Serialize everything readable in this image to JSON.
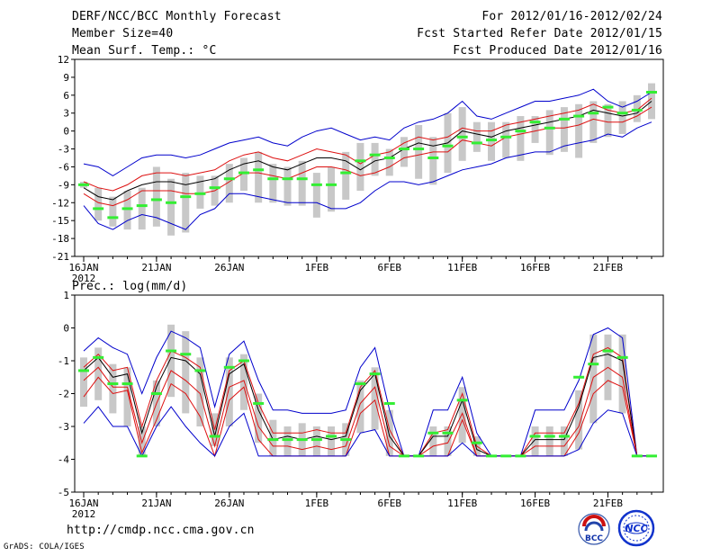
{
  "header": {
    "title": "DERF/NCC/BCC Monthly Forecast",
    "member_size": "Member Size=40",
    "variable": "Mean Surf. Temp.: °C",
    "period": "For 2012/01/16-2012/02/24",
    "started": "Fcst Started Refer Date 2012/01/15",
    "produced": "Fcst Produced Date 2012/01/16"
  },
  "footer": {
    "url": "http://cmdp.ncc.cma.gov.cn",
    "credit": "GrADS: COLA/IGES",
    "logo_left_text": "BCC",
    "logo_right_text": "NCC"
  },
  "colors": {
    "envelope": "#0000cc",
    "band": "#dd1111",
    "mean": "#000000",
    "box": "#c8c8c8",
    "median": "#33ee33"
  },
  "chart_data": [
    {
      "type": "line",
      "name": "temperature",
      "title": "",
      "ylabel": "Mean Surf. Temp.: °C",
      "ylim": [
        -21,
        12
      ],
      "yticks": [
        -21,
        -18,
        -15,
        -12,
        -9,
        -6,
        -3,
        0,
        3,
        6,
        9,
        12
      ],
      "x_first_day": 0,
      "x_last_day": 39,
      "xticks": [
        {
          "day": 0,
          "label": "16JAN"
        },
        {
          "day": 5,
          "label": "21JAN"
        },
        {
          "day": 10,
          "label": "26JAN"
        },
        {
          "day": 16,
          "label": "1FEB"
        },
        {
          "day": 21,
          "label": "6FEB"
        },
        {
          "day": 26,
          "label": "11FEB"
        },
        {
          "day": 31,
          "label": "16FEB"
        },
        {
          "day": 36,
          "label": "21FEB"
        }
      ],
      "year_label": "2012",
      "series": [
        {
          "name": "max",
          "values": [
            -5.5,
            -6,
            -7.5,
            -6,
            -4.5,
            -4,
            -4,
            -4.5,
            -4,
            -3,
            -2,
            -1.5,
            -1,
            -2,
            -2.5,
            -1,
            0,
            0.5,
            -0.5,
            -1.5,
            -1,
            -1.5,
            0.5,
            1.5,
            2,
            3,
            5,
            2.5,
            2,
            3,
            4,
            5,
            5,
            5.5,
            6,
            7,
            5,
            4,
            5,
            6.5
          ]
        },
        {
          "name": "upper",
          "values": [
            -8.5,
            -9.5,
            -10,
            -9,
            -7.5,
            -7,
            -7,
            -7.5,
            -7,
            -6.5,
            -5,
            -4,
            -3.5,
            -4.5,
            -5,
            -4,
            -3,
            -3.5,
            -4,
            -5.5,
            -4,
            -3.5,
            -2,
            -1,
            -1.5,
            -1,
            0.5,
            0,
            0,
            1,
            1.5,
            2,
            2.5,
            3,
            3.5,
            4.5,
            3.5,
            3,
            3.5,
            5.5
          ]
        },
        {
          "name": "mean",
          "values": [
            -9.5,
            -11,
            -11.5,
            -10,
            -9,
            -8.5,
            -8.5,
            -9,
            -8.5,
            -8,
            -6.5,
            -5.5,
            -5,
            -6,
            -6.5,
            -5.5,
            -4.5,
            -4.5,
            -5,
            -6.5,
            -5,
            -4.5,
            -3,
            -2,
            -2.5,
            -2,
            0,
            -0.5,
            -1,
            0,
            0.5,
            1,
            1.5,
            2,
            2.5,
            3.5,
            3,
            2.5,
            3,
            5
          ]
        },
        {
          "name": "lower",
          "values": [
            -10.5,
            -12,
            -12.5,
            -11.5,
            -10,
            -10,
            -10,
            -10.5,
            -10.5,
            -10,
            -8.5,
            -7,
            -7,
            -7.5,
            -8,
            -7,
            -6,
            -6,
            -6.5,
            -7.5,
            -7,
            -6,
            -4.5,
            -4,
            -3.5,
            -3.5,
            -1.5,
            -2,
            -2.5,
            -1,
            -0.5,
            0,
            0.5,
            0.5,
            1,
            2,
            1.5,
            1.5,
            2.5,
            4
          ]
        },
        {
          "name": "min",
          "values": [
            -12.5,
            -15.5,
            -16.5,
            -15,
            -14,
            -14.5,
            -15.5,
            -16.5,
            -14,
            -13,
            -10.5,
            -10.5,
            -11,
            -11.5,
            -12,
            -12,
            -12,
            -13,
            -13,
            -12,
            -10,
            -8.5,
            -8.5,
            -9,
            -8.5,
            -7.5,
            -6.5,
            -6,
            -5.5,
            -4.5,
            -4,
            -3.5,
            -3.5,
            -2.5,
            -2,
            -1.5,
            -0.5,
            -1,
            0.5,
            1.5
          ]
        }
      ],
      "boxes": [
        {
          "low": -9.5,
          "high": -8.5,
          "median": -9
        },
        {
          "low": -15,
          "high": -9.5,
          "median": -13
        },
        {
          "low": -16,
          "high": -11,
          "median": -14.5
        },
        {
          "low": -16.5,
          "high": -10,
          "median": -13
        },
        {
          "low": -16.5,
          "high": -9.5,
          "median": -12.5
        },
        {
          "low": -16,
          "high": -6,
          "median": -11.5
        },
        {
          "low": -17.5,
          "high": -8,
          "median": -12
        },
        {
          "low": -17,
          "high": -7,
          "median": -11
        },
        {
          "low": -13,
          "high": -7.5,
          "median": -10.5
        },
        {
          "low": -12.5,
          "high": -7.5,
          "median": -9.5
        },
        {
          "low": -12,
          "high": -5.5,
          "median": -8
        },
        {
          "low": -10,
          "high": -4.5,
          "median": -7
        },
        {
          "low": -12,
          "high": -3.5,
          "median": -6.5
        },
        {
          "low": -12,
          "high": -5.5,
          "median": -8
        },
        {
          "low": -12.5,
          "high": -6,
          "median": -8
        },
        {
          "low": -12.5,
          "high": -5,
          "median": -8
        },
        {
          "low": -14.5,
          "high": -7,
          "median": -9
        },
        {
          "low": -13.5,
          "high": -6,
          "median": -9
        },
        {
          "low": -11.5,
          "high": -3.5,
          "median": -7
        },
        {
          "low": -10,
          "high": -2,
          "median": -5
        },
        {
          "low": -7.5,
          "high": -2,
          "median": -4
        },
        {
          "low": -7.5,
          "high": -3,
          "median": -4.5
        },
        {
          "low": -6,
          "high": -1,
          "median": -3
        },
        {
          "low": -8,
          "high": 1,
          "median": -3
        },
        {
          "low": -9,
          "high": -1,
          "median": -4.5
        },
        {
          "low": -7,
          "high": 3,
          "median": -2.5
        },
        {
          "low": -5,
          "high": 4,
          "median": -1
        },
        {
          "low": -3.5,
          "high": 1.5,
          "median": -2
        },
        {
          "low": -5,
          "high": 1.5,
          "median": -1.5
        },
        {
          "low": -4.5,
          "high": 1.5,
          "median": -1
        },
        {
          "low": -5,
          "high": 2.5,
          "median": 0
        },
        {
          "low": -2,
          "high": 2.5,
          "median": 1.5
        },
        {
          "low": -4,
          "high": 3.5,
          "median": 0.5
        },
        {
          "low": -3.5,
          "high": 4,
          "median": 2
        },
        {
          "low": -4.5,
          "high": 4.5,
          "median": 2.5
        },
        {
          "low": -2,
          "high": 5,
          "median": 3
        },
        {
          "low": -1,
          "high": 4.5,
          "median": 4
        },
        {
          "low": -0.5,
          "high": 5,
          "median": 3
        },
        {
          "low": 1.5,
          "high": 6,
          "median": 3.5
        },
        {
          "low": 2,
          "high": 8,
          "median": 6.5
        }
      ]
    },
    {
      "type": "line",
      "name": "precipitation",
      "title": "",
      "ylabel": "Prec.: log(mm/d)",
      "ylim": [
        -5,
        1
      ],
      "yticks": [
        -5,
        -4,
        -3,
        -2,
        -1,
        0,
        1
      ],
      "x_first_day": 0,
      "x_last_day": 39,
      "xticks": [
        {
          "day": 0,
          "label": "16JAN"
        },
        {
          "day": 5,
          "label": "21JAN"
        },
        {
          "day": 10,
          "label": "26JAN"
        },
        {
          "day": 16,
          "label": "1FEB"
        },
        {
          "day": 21,
          "label": "6FEB"
        },
        {
          "day": 26,
          "label": "11FEB"
        },
        {
          "day": 31,
          "label": "16FEB"
        },
        {
          "day": 36,
          "label": "21FEB"
        }
      ],
      "year_label": "2012",
      "series": [
        {
          "name": "max",
          "values": [
            -0.7,
            -0.3,
            -0.6,
            -0.8,
            -2,
            -0.9,
            -0.1,
            -0.3,
            -0.6,
            -2.4,
            -0.8,
            -0.4,
            -1.6,
            -2.5,
            -2.5,
            -2.6,
            -2.6,
            -2.6,
            -2.5,
            -1.2,
            -0.6,
            -2.5,
            -3.9,
            -3.9,
            -2.5,
            -2.5,
            -1.5,
            -3.2,
            -3.9,
            -3.9,
            -3.9,
            -2.5,
            -2.5,
            -2.5,
            -1.6,
            -0.2,
            0,
            -0.3,
            -3.9,
            -3.9
          ]
        },
        {
          "name": "upper",
          "values": [
            -1.2,
            -0.8,
            -1.3,
            -1.2,
            -3,
            -1.6,
            -0.7,
            -0.9,
            -1.2,
            -3.1,
            -1.3,
            -1,
            -2.3,
            -3.2,
            -3.2,
            -3.2,
            -3.1,
            -3.2,
            -3.2,
            -1.8,
            -1.3,
            -3.1,
            -3.9,
            -3.9,
            -3.2,
            -3.1,
            -2,
            -3.6,
            -3.9,
            -3.9,
            -3.9,
            -3.2,
            -3.2,
            -3.2,
            -2.3,
            -0.8,
            -0.6,
            -0.9,
            -3.9,
            -3.9
          ]
        },
        {
          "name": "mean",
          "values": [
            -1.3,
            -0.9,
            -1.5,
            -1.4,
            -3.2,
            -1.8,
            -0.9,
            -1,
            -1.4,
            -3.3,
            -1.4,
            -1.1,
            -2.5,
            -3.4,
            -3.3,
            -3.4,
            -3.3,
            -3.4,
            -3.3,
            -1.9,
            -1.4,
            -3.3,
            -3.9,
            -3.9,
            -3.3,
            -3.3,
            -2.2,
            -3.7,
            -3.9,
            -3.9,
            -3.9,
            -3.4,
            -3.4,
            -3.4,
            -2.4,
            -0.9,
            -0.8,
            -1,
            -3.9,
            -3.9
          ]
        },
        {
          "name": "lower",
          "values": [
            -1.6,
            -1.2,
            -1.8,
            -1.8,
            -3.5,
            -2.3,
            -1.3,
            -1.6,
            -2,
            -3.6,
            -1.8,
            -1.6,
            -3,
            -3.6,
            -3.6,
            -3.7,
            -3.6,
            -3.7,
            -3.6,
            -2.3,
            -1.8,
            -3.6,
            -3.9,
            -3.9,
            -3.6,
            -3.5,
            -2.6,
            -3.9,
            -3.9,
            -3.9,
            -3.9,
            -3.6,
            -3.6,
            -3.6,
            -3,
            -1.5,
            -1.2,
            -1.5,
            -3.9,
            -3.9
          ]
        },
        {
          "name": "lower2",
          "values": [
            -2.1,
            -1.5,
            -2,
            -1.9,
            -3.8,
            -2.8,
            -1.7,
            -2,
            -2.7,
            -3.9,
            -2.2,
            -1.8,
            -3.4,
            -3.9,
            -3.9,
            -3.9,
            -3.9,
            -3.9,
            -3.9,
            -2.6,
            -2.2,
            -3.9,
            -3.9,
            -3.9,
            -3.9,
            -3.9,
            -2.8,
            -3.9,
            -3.9,
            -3.9,
            -3.9,
            -3.9,
            -3.9,
            -3.9,
            -3.2,
            -2,
            -1.6,
            -1.8,
            -3.9,
            -3.9
          ]
        },
        {
          "name": "min",
          "values": [
            -2.9,
            -2.4,
            -3,
            -3,
            -3.9,
            -3,
            -2.4,
            -3,
            -3.5,
            -3.9,
            -3,
            -2.6,
            -3.9,
            -3.9,
            -3.9,
            -3.9,
            -3.9,
            -3.9,
            -3.9,
            -3.2,
            -3.1,
            -3.9,
            -3.9,
            -3.9,
            -3.9,
            -3.9,
            -3.5,
            -3.9,
            -3.9,
            -3.9,
            -3.9,
            -3.9,
            -3.9,
            -3.9,
            -3.7,
            -2.9,
            -2.5,
            -2.6,
            -3.9,
            -3.9
          ]
        }
      ],
      "boxes": [
        {
          "low": -2.4,
          "high": -0.9,
          "median": -1.3
        },
        {
          "low": -2.2,
          "high": -0.6,
          "median": -0.9
        },
        {
          "low": -2.6,
          "high": -1.1,
          "median": -1.7
        },
        {
          "low": -3,
          "high": -1.2,
          "median": -1.7
        },
        {
          "low": -3.9,
          "high": -3,
          "median": -3.9
        },
        {
          "low": -3,
          "high": -1.6,
          "median": -2
        },
        {
          "low": -2.1,
          "high": 0.1,
          "median": -0.7
        },
        {
          "low": -2.6,
          "high": -0.1,
          "median": -0.8
        },
        {
          "low": -3,
          "high": -0.9,
          "median": -1.3
        },
        {
          "low": -3.6,
          "high": -2.6,
          "median": -3.3
        },
        {
          "low": -3,
          "high": -0.9,
          "median": -1.2
        },
        {
          "low": -2.5,
          "high": -0.8,
          "median": -1
        },
        {
          "low": -3.5,
          "high": -2,
          "median": -2.3
        },
        {
          "low": -3.9,
          "high": -2.8,
          "median": -3.4
        },
        {
          "low": -3.9,
          "high": -3,
          "median": -3.4
        },
        {
          "low": -3.9,
          "high": -2.9,
          "median": -3.4
        },
        {
          "low": -3.9,
          "high": -3,
          "median": -3.4
        },
        {
          "low": -3.9,
          "high": -3,
          "median": -3.3
        },
        {
          "low": -3.9,
          "high": -2.9,
          "median": -3.4
        },
        {
          "low": -3.2,
          "high": -1.6,
          "median": -1.7
        },
        {
          "low": -3.1,
          "high": -1.2,
          "median": -1.4
        },
        {
          "low": -3.9,
          "high": -2.5,
          "median": -2.3
        },
        {
          "low": -3.9,
          "high": -3.9,
          "median": -3.9
        },
        {
          "low": -3.9,
          "high": -3.9,
          "median": -3.9
        },
        {
          "low": -3.9,
          "high": -3,
          "median": -3.2
        },
        {
          "low": -3.9,
          "high": -3,
          "median": -3.2
        },
        {
          "low": -3.5,
          "high": -1.8,
          "median": -2.2
        },
        {
          "low": -3.9,
          "high": -3.3,
          "median": -3.5
        },
        {
          "low": -3.9,
          "high": -3.9,
          "median": -3.9
        },
        {
          "low": -3.9,
          "high": -3.9,
          "median": -3.9
        },
        {
          "low": -3.9,
          "high": -3.9,
          "median": -3.9
        },
        {
          "low": -3.9,
          "high": -3,
          "median": -3.3
        },
        {
          "low": -3.9,
          "high": -3,
          "median": -3.3
        },
        {
          "low": -3.9,
          "high": -3,
          "median": -3.3
        },
        {
          "low": -3.7,
          "high": -1.9,
          "median": -1.5
        },
        {
          "low": -2.9,
          "high": -0.2,
          "median": -1.1
        },
        {
          "low": -2.2,
          "high": -0.2,
          "median": -0.7
        },
        {
          "low": -2.6,
          "high": -0.2,
          "median": -0.9
        },
        {
          "low": -3.9,
          "high": -3.9,
          "median": -3.9
        },
        {
          "low": -3.9,
          "high": -3.9,
          "median": -3.9
        }
      ]
    }
  ]
}
